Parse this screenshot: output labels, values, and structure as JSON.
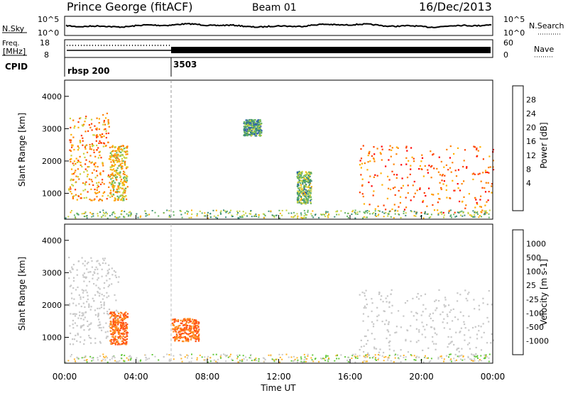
{
  "header": {
    "station": "Prince George (fitACF)",
    "beam": "Beam 01",
    "date": "16/Dec/2013"
  },
  "noise_panel": {
    "left_label": "N.Sky",
    "right_label": "N.Search",
    "left_ticks": [
      "10^5",
      "10^0"
    ],
    "right_ticks": [
      "10^5",
      "10^0"
    ]
  },
  "freq_panel": {
    "left_label_line1": "Freq.",
    "left_label_line2": "[MHz]",
    "right_label": "Nave",
    "left_ticks": [
      "18",
      "8"
    ],
    "right_ticks": [
      "60",
      "0"
    ]
  },
  "cpid_panel": {
    "label": "CPID",
    "segments": [
      {
        "start_hour": 0,
        "name": "rbsp 200"
      },
      {
        "start_hour": 6,
        "name": "3503"
      }
    ]
  },
  "chart_data": [
    {
      "type": "heatmap",
      "parameter": "Power",
      "colorbar_label": "Power [dB]",
      "ylabel": "Slant Range [km]",
      "ylim": [
        200,
        4500
      ],
      "yticks": [
        1000,
        2000,
        3000,
        4000
      ],
      "xlim": [
        0,
        24
      ],
      "colorbar_ticks": [
        "28",
        "24",
        "20",
        "16",
        "12",
        "8",
        "4"
      ],
      "colorbar_colors": [
        "#ff0000",
        "#ff4000",
        "#ff8000",
        "#ffb000",
        "#c8d23c",
        "#64b464",
        "#3c8c78",
        "#2d5ab4",
        "#0000ff"
      ],
      "regions": [
        {
          "t0": 0.2,
          "t1": 2.5,
          "r0": 800,
          "r1": 3500,
          "dominant_db": 20
        },
        {
          "t0": 2.5,
          "t1": 3.5,
          "r0": 800,
          "r1": 2500,
          "dominant_db": 16
        },
        {
          "t0": 10.0,
          "t1": 11.0,
          "r0": 2800,
          "r1": 3300,
          "dominant_db": 8
        },
        {
          "t0": 13.0,
          "t1": 13.8,
          "r0": 700,
          "r1": 1700,
          "dominant_db": 10
        },
        {
          "t0": 16.5,
          "t1": 24.0,
          "r0": 400,
          "r1": 2500,
          "dominant_db": 24
        }
      ]
    },
    {
      "type": "heatmap",
      "parameter": "Velocity",
      "colorbar_label": "Velocity [m s-1]",
      "ylabel": "Slant Range [km]",
      "ylim": [
        200,
        4500
      ],
      "yticks": [
        1000,
        2000,
        3000,
        4000
      ],
      "xlim": [
        0,
        24
      ],
      "xlabel": "Time UT",
      "xtick_labels": [
        "00:00",
        "04:00",
        "08:00",
        "12:00",
        "16:00",
        "20:00",
        "00:00"
      ],
      "colorbar_ticks": [
        "1000",
        "500",
        "100",
        "25",
        "-25",
        "-100",
        "-500",
        "-1000"
      ],
      "colorbar_colors": [
        "#1e46c8",
        "#3c78b4",
        "#3c9646",
        "#64c83c",
        "#c8c8c8",
        "#ffb428",
        "#ff8c1e",
        "#ff5014",
        "#ff0000"
      ],
      "regions": [
        {
          "t0": 0.2,
          "t1": 3.0,
          "r0": 800,
          "r1": 3500,
          "dominant_ms": 0
        },
        {
          "t0": 2.5,
          "t1": 3.5,
          "r0": 800,
          "r1": 1800,
          "dominant_ms": -300
        },
        {
          "t0": 6.0,
          "t1": 7.5,
          "r0": 900,
          "r1": 1600,
          "dominant_ms": -300
        },
        {
          "t0": 16.5,
          "t1": 24.0,
          "r0": 400,
          "r1": 2500,
          "dominant_ms": 0
        }
      ]
    }
  ]
}
